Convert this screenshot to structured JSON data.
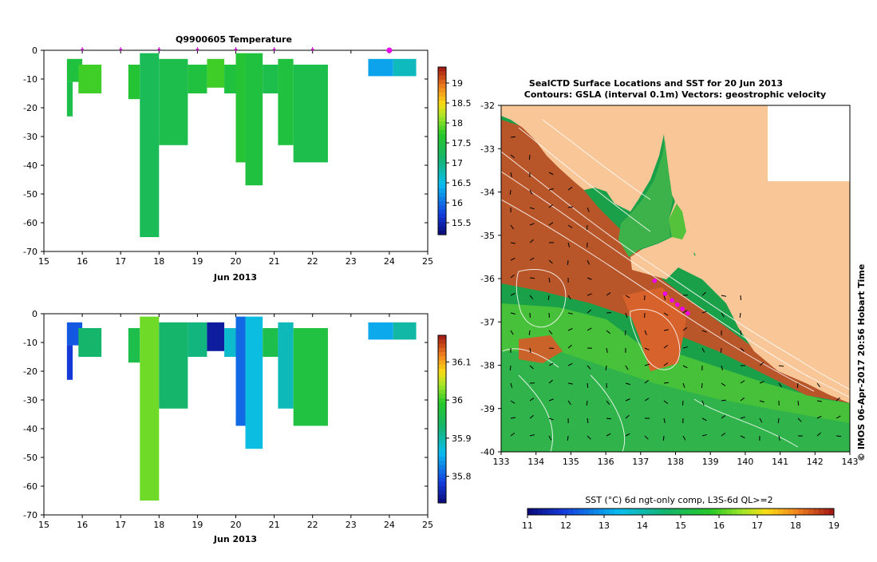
{
  "chart_data": [
    {
      "type": "heatmap",
      "title": "Q9900605  Temperature",
      "xlabel": "Jun 2013",
      "xlim": [
        15,
        25
      ],
      "ylim": [
        -70,
        0
      ],
      "xticks": [
        15,
        16,
        17,
        18,
        19,
        20,
        21,
        22,
        23,
        24,
        25
      ],
      "yticks": [
        0,
        -10,
        -20,
        -30,
        -40,
        -50,
        -60,
        -70
      ],
      "markers_x": [
        16,
        17,
        18,
        19,
        20,
        21,
        22
      ],
      "marker_highlight_x": 24,
      "colorbar": {
        "min": 15.2,
        "max": 19.4,
        "ticks": [
          15.5,
          16,
          16.5,
          17,
          17.5,
          18,
          18.5,
          19
        ]
      },
      "cells": [
        {
          "x0": 15.6,
          "x1": 16.0,
          "y0": -3,
          "y1": -11,
          "v": 17.5
        },
        {
          "x0": 15.6,
          "x1": 15.75,
          "y0": -11,
          "y1": -23,
          "v": 17.4
        },
        {
          "x0": 15.9,
          "x1": 16.5,
          "y0": -5,
          "y1": -15,
          "v": 17.8
        },
        {
          "x0": 17.2,
          "x1": 17.5,
          "y0": -5,
          "y1": -17,
          "v": 17.6
        },
        {
          "x0": 17.5,
          "x1": 18.0,
          "y0": -1,
          "y1": -65,
          "v": 17.3
        },
        {
          "x0": 18.0,
          "x1": 18.75,
          "y0": -3,
          "y1": -33,
          "v": 17.4
        },
        {
          "x0": 18.75,
          "x1": 19.25,
          "y0": -5,
          "y1": -15,
          "v": 17.5
        },
        {
          "x0": 19.25,
          "x1": 19.7,
          "y0": -3,
          "y1": -13,
          "v": 17.8
        },
        {
          "x0": 19.7,
          "x1": 20.0,
          "y0": -5,
          "y1": -15,
          "v": 17.5
        },
        {
          "x0": 20.0,
          "x1": 20.25,
          "y0": -1,
          "y1": -39,
          "v": 17.6
        },
        {
          "x0": 20.25,
          "x1": 20.7,
          "y0": -1,
          "y1": -47,
          "v": 17.5
        },
        {
          "x0": 20.7,
          "x1": 21.1,
          "y0": -5,
          "y1": -15,
          "v": 17.4
        },
        {
          "x0": 21.1,
          "x1": 21.5,
          "y0": -3,
          "y1": -33,
          "v": 17.5
        },
        {
          "x0": 21.5,
          "x1": 22.4,
          "y0": -5,
          "y1": -39,
          "v": 17.4
        },
        {
          "x0": 23.45,
          "x1": 24.1,
          "y0": -3,
          "y1": -9,
          "v": 16.3
        },
        {
          "x0": 24.1,
          "x1": 24.7,
          "y0": -3,
          "y1": -9,
          "v": 16.7
        }
      ]
    },
    {
      "type": "heatmap",
      "title": "",
      "xlabel": "Jun 2013",
      "xlim": [
        15,
        25
      ],
      "ylim": [
        -70,
        0
      ],
      "xticks": [
        15,
        16,
        17,
        18,
        19,
        20,
        21,
        22,
        23,
        24,
        25
      ],
      "yticks": [
        0,
        -10,
        -20,
        -30,
        -40,
        -50,
        -60,
        -70
      ],
      "colorbar": {
        "min": 35.73,
        "max": 36.17,
        "ticks": [
          35.8,
          35.9,
          36,
          36.1
        ]
      },
      "cells": [
        {
          "x0": 15.6,
          "x1": 16.0,
          "y0": -3,
          "y1": -11,
          "v": 35.8
        },
        {
          "x0": 15.6,
          "x1": 15.75,
          "y0": -11,
          "y1": -23,
          "v": 35.78
        },
        {
          "x0": 15.9,
          "x1": 16.5,
          "y0": -5,
          "y1": -15,
          "v": 35.93
        },
        {
          "x0": 17.2,
          "x1": 17.5,
          "y0": -5,
          "y1": -17,
          "v": 35.96
        },
        {
          "x0": 17.5,
          "x1": 18.0,
          "y0": -1,
          "y1": -65,
          "v": 36.02
        },
        {
          "x0": 18.0,
          "x1": 18.75,
          "y0": -3,
          "y1": -33,
          "v": 35.93
        },
        {
          "x0": 18.75,
          "x1": 19.25,
          "y0": -3,
          "y1": -15,
          "v": 35.92
        },
        {
          "x0": 19.25,
          "x1": 19.7,
          "y0": -3,
          "y1": -13,
          "v": 35.75
        },
        {
          "x0": 19.7,
          "x1": 20.0,
          "y0": -5,
          "y1": -15,
          "v": 35.88
        },
        {
          "x0": 20.0,
          "x1": 20.25,
          "y0": -1,
          "y1": -39,
          "v": 35.81
        },
        {
          "x0": 20.25,
          "x1": 20.7,
          "y0": -1,
          "y1": -47,
          "v": 35.87
        },
        {
          "x0": 20.7,
          "x1": 21.1,
          "y0": -5,
          "y1": -15,
          "v": 35.96
        },
        {
          "x0": 21.1,
          "x1": 21.5,
          "y0": -3,
          "y1": -33,
          "v": 35.89
        },
        {
          "x0": 21.5,
          "x1": 22.4,
          "y0": -5,
          "y1": -39,
          "v": 35.97
        },
        {
          "x0": 23.45,
          "x1": 24.1,
          "y0": -3,
          "y1": -9,
          "v": 35.85
        },
        {
          "x0": 24.1,
          "x1": 24.7,
          "y0": -3,
          "y1": -9,
          "v": 35.9
        }
      ]
    },
    {
      "type": "heatmap",
      "title": "SealCTD Surface Locations and SST for 20 Jun 2013",
      "subtitle": "Contours: GSLA (interval 0.1m) Vectors: geostrophic velocity",
      "xlim": [
        133,
        143
      ],
      "ylim": [
        -40,
        -32
      ],
      "xticks": [
        133,
        134,
        135,
        136,
        137,
        138,
        139,
        140,
        141,
        142,
        143
      ],
      "yticks": [
        -32,
        -33,
        -34,
        -35,
        -36,
        -37,
        -38,
        -39,
        -40
      ],
      "side_label": "© IMOS 06-Apr-2017 20:56 Hobart Time",
      "colorbar_label": "SST (°C) 6d ngt-only comp, L3S-6d QL>=2",
      "colorbar": {
        "min": 11,
        "max": 19,
        "ticks": [
          11,
          12,
          13,
          14,
          15,
          16,
          17,
          18,
          19
        ]
      },
      "seal_locations": [
        {
          "lon": 137.4,
          "lat": -36.05
        },
        {
          "lon": 137.7,
          "lat": -36.35
        },
        {
          "lon": 137.9,
          "lat": -36.5
        },
        {
          "lon": 138.05,
          "lat": -36.6
        },
        {
          "lon": 138.2,
          "lat": -36.7
        },
        {
          "lon": 138.35,
          "lat": -36.8
        }
      ]
    }
  ]
}
